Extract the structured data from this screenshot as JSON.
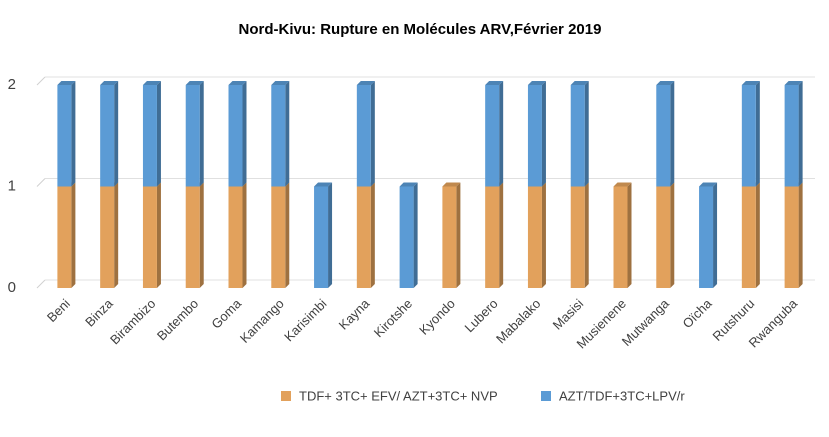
{
  "chart_data": {
    "type": "bar",
    "stacked": true,
    "title": "Nord-Kivu: Rupture en Molécules ARV,Février 2019",
    "categories": [
      "Beni",
      "Binza",
      "Birambizo",
      "Butembo",
      "Goma",
      "Kamango",
      "Karisimbi",
      "Kayna",
      "Kirotshe",
      "Kyondo",
      "Lubero",
      "Mabalako",
      "Masisi",
      "Musienene",
      "Mutwanga",
      "Oïcha",
      "Rutshuru",
      "Rwanguba"
    ],
    "series": [
      {
        "name": "TDF+ 3TC+ EFV/ AZT+3TC+ NVP",
        "color": "#e2a15c",
        "values": [
          1,
          1,
          1,
          1,
          1,
          1,
          0,
          1,
          0,
          1,
          1,
          1,
          1,
          1,
          1,
          0,
          1,
          1
        ]
      },
      {
        "name": "AZT/TDF+3TC+LPV/r",
        "color": "#5b9bd5",
        "values": [
          1,
          1,
          1,
          1,
          1,
          1,
          1,
          1,
          1,
          0,
          1,
          1,
          1,
          0,
          1,
          1,
          1,
          1
        ]
      }
    ],
    "ylim": [
      0,
      2
    ],
    "yticks": [
      0,
      1,
      2
    ],
    "grid": true,
    "legend": "bottom"
  }
}
